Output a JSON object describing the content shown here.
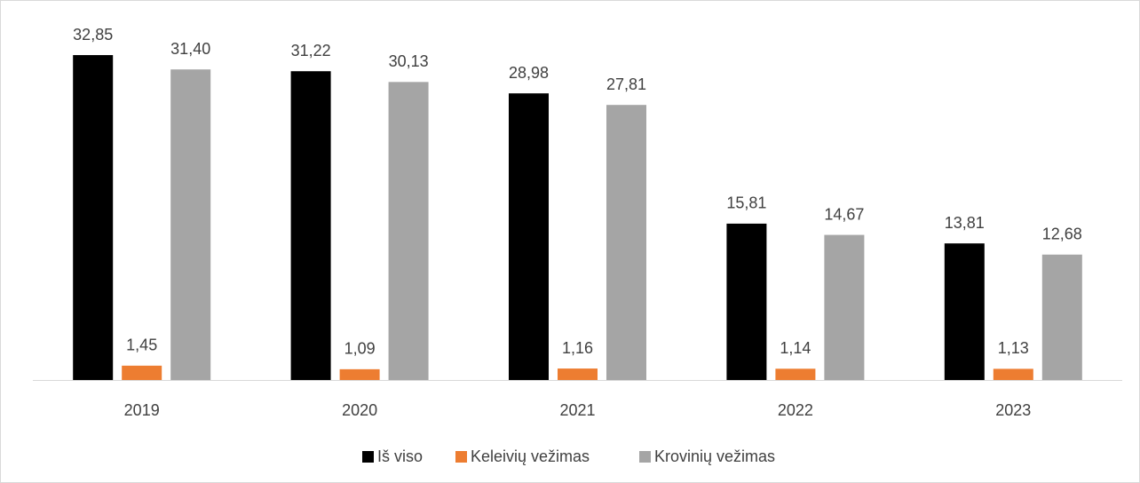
{
  "chart_data": {
    "type": "bar",
    "categories": [
      "2019",
      "2020",
      "2021",
      "2022",
      "2023"
    ],
    "series": [
      {
        "name": "Iš viso",
        "color": "#000000",
        "values": [
          32.85,
          31.22,
          28.98,
          15.81,
          13.81
        ],
        "value_labels": [
          "32,85",
          "31,22",
          "28,98",
          "15,81",
          "13,81"
        ]
      },
      {
        "name": "Keleivių vežimas",
        "color": "#ed7d31",
        "values": [
          1.45,
          1.09,
          1.16,
          1.14,
          1.13
        ],
        "value_labels": [
          "1,45",
          "1,09",
          "1,16",
          "1,14",
          "1,13"
        ]
      },
      {
        "name": "Krovinių vežimas",
        "color": "#a5a5a5",
        "values": [
          31.4,
          30.13,
          27.81,
          14.67,
          12.68
        ],
        "value_labels": [
          "31,40",
          "30,13",
          "27,81",
          "14,67",
          "12,68"
        ]
      }
    ],
    "legend": "bottom"
  }
}
